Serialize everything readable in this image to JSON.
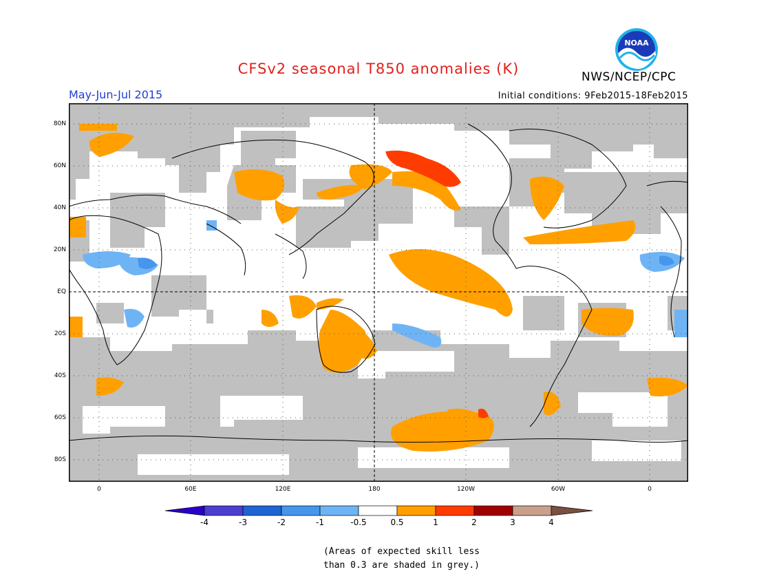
{
  "header": {
    "title": "CFSv2 seasonal T850 anomalies (K)",
    "period": "May-Jun-Jul 2015",
    "agency": "NWS/NCEP/CPC",
    "initial_conditions": "Initial conditions: 9Feb2015-18Feb2015",
    "logo_text": "NOAA"
  },
  "map": {
    "lat_labels": [
      "80N",
      "60N",
      "40N",
      "20N",
      "EQ",
      "20S",
      "40S",
      "60S",
      "80S"
    ],
    "lon_labels": [
      "0",
      "60E",
      "120E",
      "180",
      "120W",
      "60W",
      "0"
    ],
    "colors": {
      "land_fill": "#ffffff",
      "low_skill_grey": "#c0c0c0",
      "positive_05_1": "#ffa000",
      "positive_1_2": "#ff3c00",
      "negative_05_1": "#6eb4f5",
      "negative_1_2": "#4696eb"
    }
  },
  "legend": {
    "labels": [
      "-4",
      "-3",
      "-2",
      "-1",
      "-0.5",
      "0.5",
      "1",
      "2",
      "3",
      "4"
    ],
    "colors": [
      "#2a00c8",
      "#4b3fd1",
      "#1e64d2",
      "#4696eb",
      "#6eb4f5",
      "#ffffff",
      "#ffa000",
      "#ff3c00",
      "#a00000",
      "#c8a08c",
      "#7a5040"
    ]
  },
  "note": {
    "line1": "(Areas of expected skill less",
    "line2": "than 0.3 are shaded in grey.)"
  }
}
